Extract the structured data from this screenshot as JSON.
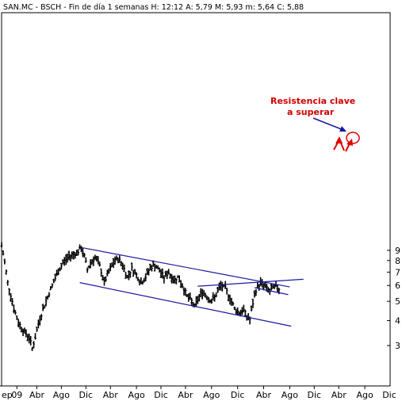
{
  "header": {
    "text": "SAN.MC - BSCH - Fin de día 1 semanas H: 12:12 A: 5,79 M: 5,93 m: 5,64 C: 5,88"
  },
  "annotation": {
    "line1": "Resistencia clave",
    "line2": "a superar"
  },
  "chart_data": {
    "type": "line",
    "title": "SAN.MC - BSCH - Fin de día 1 semanas",
    "last_quote": {
      "H": "12:12",
      "A": "5,79",
      "M": "5,93",
      "m": "5,64",
      "C": "5,88"
    },
    "y_scale": "log",
    "ylim": [
      2.75,
      9.7
    ],
    "y_ticks": [
      3,
      4,
      5,
      6,
      7,
      8,
      9
    ],
    "y_tick_labels": [
      "3",
      "4",
      "5",
      "6",
      "7",
      "8",
      "9"
    ],
    "x_range_weeks": [
      0,
      164
    ],
    "x_ticks": [
      {
        "label": "ep",
        "w": 0
      },
      {
        "label": "09",
        "w": 10
      },
      {
        "label": "Abr",
        "w": 23
      },
      {
        "label": "Ago",
        "w": 39
      },
      {
        "label": "Dic",
        "w": 55
      },
      {
        "label": "Abr",
        "w": 71
      },
      {
        "label": "Ago",
        "w": 88
      },
      {
        "label": "Dic",
        "w": 104
      },
      {
        "label": "Abr",
        "w": 120
      },
      {
        "label": "Ago",
        "w": 137
      },
      {
        "label": "Dic",
        "w": 154
      },
      {
        "label": "Abr",
        "w": 171
      },
      {
        "label": "Ago",
        "w": 188
      },
      {
        "label": "Dic",
        "w": 204
      },
      {
        "label": "Abr",
        "w": 220
      },
      {
        "label": "Ago",
        "w": 237
      },
      {
        "label": "Dic",
        "w": 253
      }
    ],
    "x_week_scale": [
      0,
      253
    ],
    "grid": false,
    "price_keypoints": [
      [
        0,
        9.5
      ],
      [
        4,
        6.2
      ],
      [
        8,
        4.6
      ],
      [
        11,
        3.9
      ],
      [
        15,
        3.5
      ],
      [
        18,
        3.3
      ],
      [
        20,
        2.9
      ],
      [
        22,
        3.3
      ],
      [
        25,
        4.1
      ],
      [
        29,
        5.0
      ],
      [
        33,
        6.0
      ],
      [
        36,
        6.8
      ],
      [
        40,
        7.8
      ],
      [
        44,
        8.4
      ],
      [
        47,
        8.6
      ],
      [
        50,
        8.9
      ],
      [
        52,
        9.2
      ],
      [
        54,
        8.4
      ],
      [
        56,
        7.2
      ],
      [
        58,
        7.8
      ],
      [
        61,
        8.3
      ],
      [
        64,
        7.5
      ],
      [
        67,
        6.2
      ],
      [
        70,
        7.0
      ],
      [
        73,
        7.8
      ],
      [
        76,
        8.2
      ],
      [
        79,
        7.6
      ],
      [
        82,
        6.6
      ],
      [
        85,
        7.3
      ],
      [
        88,
        6.8
      ],
      [
        91,
        6.2
      ],
      [
        94,
        6.6
      ],
      [
        97,
        7.4
      ],
      [
        100,
        7.6
      ],
      [
        103,
        7.1
      ],
      [
        106,
        6.6
      ],
      [
        109,
        7.0
      ],
      [
        112,
        6.4
      ],
      [
        115,
        6.6
      ],
      [
        118,
        6.0
      ],
      [
        121,
        5.3
      ],
      [
        124,
        5.0
      ],
      [
        126,
        4.7
      ],
      [
        128,
        5.1
      ],
      [
        131,
        5.6
      ],
      [
        134,
        5.3
      ],
      [
        137,
        5.0
      ],
      [
        140,
        5.4
      ],
      [
        143,
        6.0
      ],
      [
        146,
        5.8
      ],
      [
        149,
        5.2
      ],
      [
        152,
        4.6
      ],
      [
        155,
        4.4
      ],
      [
        158,
        4.5
      ],
      [
        160,
        4.2
      ],
      [
        162,
        4.05
      ],
      [
        164,
        4.9
      ],
      [
        166,
        5.7
      ],
      [
        169,
        6.2
      ],
      [
        172,
        5.9
      ],
      [
        175,
        5.6
      ],
      [
        178,
        5.9
      ],
      [
        181,
        5.8
      ]
    ],
    "trendlines": [
      {
        "name": "upper-channel",
        "from": [
          52,
          9.3
        ],
        "to": [
          188,
          5.9
        ]
      },
      {
        "name": "lower-channel",
        "from": [
          51,
          6.2
        ],
        "to": [
          189,
          3.75
        ]
      },
      {
        "name": "rising-resistance",
        "from": [
          128,
          5.95
        ],
        "to": [
          197,
          6.45
        ]
      },
      {
        "name": "wedge-lower",
        "from": [
          165,
          5.85
        ],
        "to": [
          187,
          5.4
        ]
      }
    ]
  }
}
